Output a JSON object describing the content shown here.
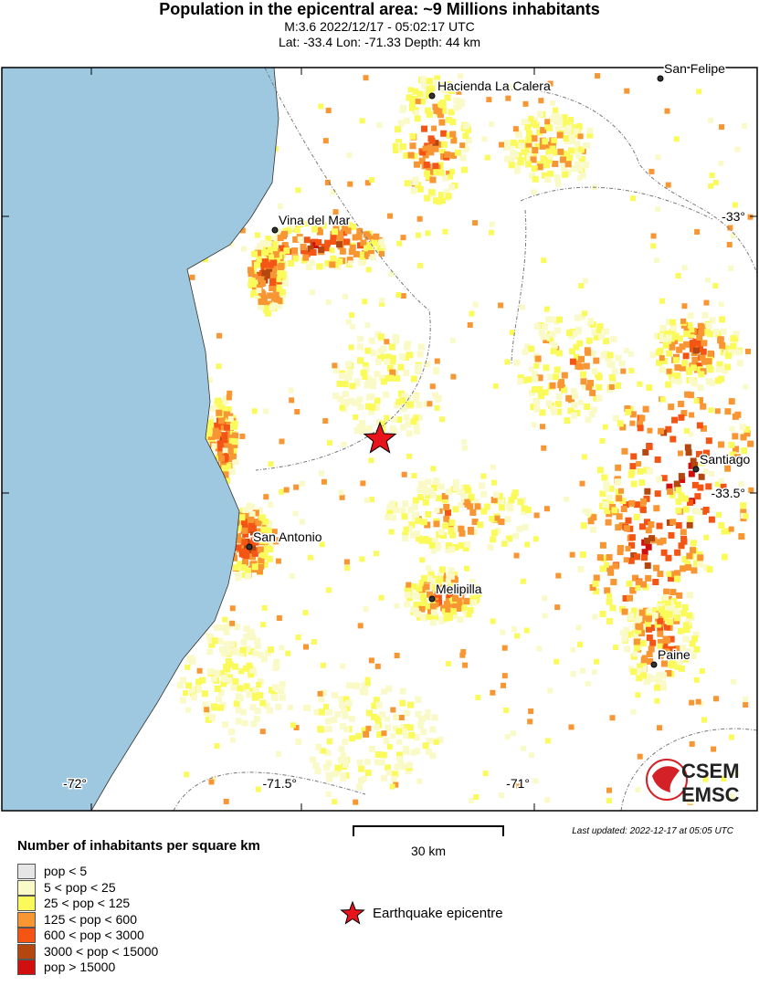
{
  "header": {
    "title": "Population in the epicentral area: ~9 Millions inhabitants",
    "subtitle": "M:3.6 2022/12/17 - 05:02:17 UTC",
    "location": "Lat: -33.4 Lon: -71.33 Depth: 44 km"
  },
  "map": {
    "colors": {
      "ocean": "#9ec8df",
      "land": "#ffffff",
      "epicentre": "#e8131b"
    },
    "cities": [
      "Hacienda La Calera",
      "San Felipe",
      "Vina del Mar",
      "Santiago",
      "San Antonio",
      "Melipilla",
      "Paine"
    ],
    "lat_ticks": [
      "-33°",
      "-33.5°"
    ],
    "lon_ticks": [
      "-72°",
      "-71.5°",
      "-71°"
    ],
    "epicentre": {
      "lat": -33.4,
      "lon": -71.33
    },
    "logo": {
      "top": "CSEM",
      "bottom": "EMSC"
    }
  },
  "legend": {
    "title": "Number of inhabitants per square km",
    "items": [
      {
        "label": "pop < 5",
        "color": "#e6e6e6"
      },
      {
        "label": "5 < pop < 25",
        "color": "#fafac8"
      },
      {
        "label": "25 < pop < 125",
        "color": "#fafa5a"
      },
      {
        "label": "125 < pop < 600",
        "color": "#f79632"
      },
      {
        "label": "600 < pop < 3000",
        "color": "#f55514"
      },
      {
        "label": "3000 < pop < 15000",
        "color": "#b4460f"
      },
      {
        "label": "pop > 15000",
        "color": "#d20f0f"
      }
    ],
    "epicentre_label": "Earthquake epicentre"
  },
  "scale": {
    "label": "30 km"
  },
  "updated": "Last updated: 2022-12-17 at 05:05 UTC"
}
